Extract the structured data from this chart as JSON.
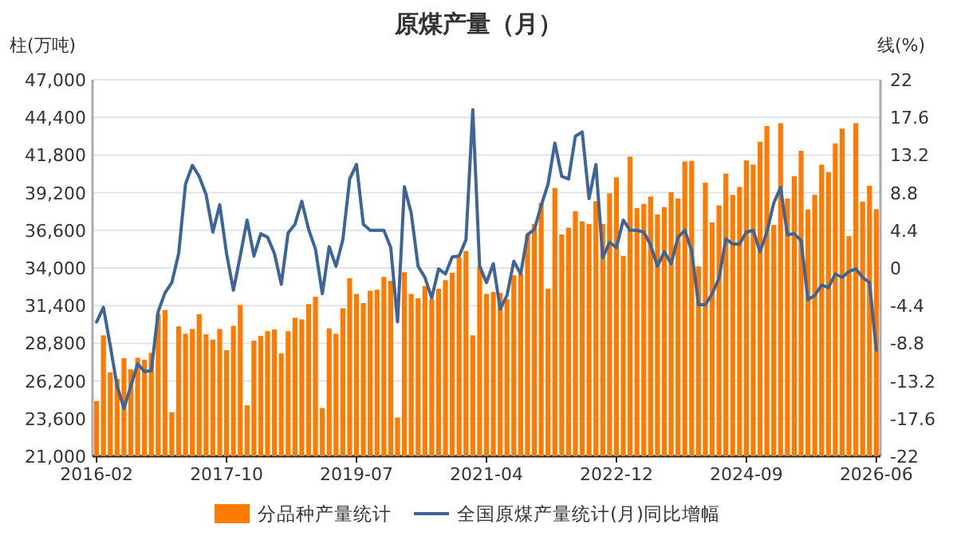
{
  "chart_data": {
    "type": "bar",
    "title": "原煤产量（月）",
    "ylabel": "柱(万吨)",
    "y2label": "线(%)",
    "categories": [
      "2016-02",
      null,
      null,
      null,
      null,
      null,
      null,
      null,
      null,
      null,
      null,
      null,
      null,
      null,
      null,
      null,
      null,
      null,
      null,
      "2017-10",
      null,
      null,
      null,
      null,
      null,
      null,
      null,
      null,
      null,
      null,
      null,
      null,
      null,
      null,
      null,
      null,
      null,
      null,
      "2019-07",
      null,
      null,
      null,
      null,
      null,
      null,
      null,
      null,
      null,
      null,
      null,
      null,
      null,
      null,
      null,
      null,
      null,
      null,
      "2021-04",
      null,
      null,
      null,
      null,
      null,
      null,
      null,
      null,
      null,
      null,
      null,
      null,
      null,
      null,
      null,
      null,
      null,
      null,
      "2022-12",
      null,
      null,
      null,
      null,
      null,
      null,
      null,
      null,
      null,
      null,
      null,
      null,
      null,
      null,
      null,
      null,
      null,
      null,
      "2024-09",
      null,
      null,
      null,
      null,
      null,
      null,
      null,
      null,
      null,
      null,
      null,
      null,
      null,
      null,
      null,
      null,
      null,
      null,
      "2026-06"
    ],
    "series": [
      {
        "name": "分品种产量统计",
        "color": "#ff7a00",
        "values": [
          24800,
          29350,
          26790,
          26350,
          27770,
          27000,
          27800,
          27660,
          28140,
          30810,
          31100,
          24040,
          29970,
          29460,
          29790,
          30810,
          29420,
          29060,
          29790,
          28320,
          30010,
          31440,
          24520,
          28980,
          29310,
          29640,
          29750,
          28100,
          29640,
          30560,
          30450,
          31510,
          32020,
          24330,
          29830,
          29460,
          31220,
          33300,
          32210,
          31580,
          32430,
          32500,
          33380,
          33120,
          23670,
          33710,
          32210,
          31910,
          32760,
          31840,
          32570,
          33160,
          33670,
          34730,
          35170,
          29350,
          34110,
          32210,
          32350,
          32280,
          31840,
          33490,
          33560,
          36310,
          37040,
          38500,
          32570,
          39530,
          36310,
          36780,
          37920,
          37220,
          37040,
          38610,
          37040,
          39160,
          40260,
          34840,
          41690,
          38140,
          38430,
          38940,
          37700,
          38210,
          39240,
          38800,
          41360,
          41400,
          34110,
          39900,
          37150,
          38320,
          40520,
          39050,
          39600,
          41430,
          41140,
          42720,
          43810,
          36970,
          44000,
          38800,
          40340,
          42090,
          38030,
          39050,
          41140,
          40630,
          42610,
          43630,
          36200,
          44000,
          38580,
          39680,
          38060
        ]
      },
      {
        "name": "全国原煤产量统计(月)同比增幅",
        "color": "#3d6596",
        "type": "line",
        "axis": "y2",
        "values": [
          -6.3,
          -4.6,
          -9.1,
          -13.8,
          -16.4,
          -13.8,
          -11.2,
          -12.1,
          -12.0,
          -5.1,
          -2.9,
          -1.7,
          1.7,
          9.8,
          12.0,
          10.7,
          8.6,
          4.2,
          7.4,
          1.7,
          -2.6,
          1.4,
          5.6,
          1.4,
          4.0,
          3.6,
          1.7,
          -1.9,
          4.1,
          5.1,
          7.8,
          4.5,
          2.2,
          -3.0,
          2.5,
          0.2,
          3.3,
          10.4,
          12.1,
          5.1,
          4.4,
          4.4,
          4.4,
          2.4,
          -6.3,
          9.5,
          6.4,
          0.2,
          -1.1,
          -3.5,
          -0.1,
          -0.7,
          1.3,
          1.4,
          3.3,
          18.5,
          0.2,
          -1.7,
          0.5,
          -4.8,
          -3.2,
          0.8,
          -0.7,
          3.9,
          4.5,
          7.3,
          9.8,
          14.6,
          10.7,
          10.4,
          15.4,
          15.9,
          8.1,
          12.1,
          1.2,
          3.0,
          2.4,
          5.6,
          4.4,
          4.4,
          4.2,
          2.7,
          0.2,
          1.9,
          0.5,
          3.6,
          4.4,
          2.0,
          -4.3,
          -4.3,
          -3.0,
          -1.2,
          3.4,
          2.8,
          2.8,
          4.2,
          4.4,
          1.9,
          4.2,
          7.6,
          9.4,
          3.9,
          4.0,
          3.2,
          -3.7,
          -3.2,
          -2.0,
          -2.3,
          -0.7,
          -1.1,
          -0.4,
          -0.1,
          -1.1,
          -1.7,
          -9.6
        ]
      }
    ],
    "ylim": [
      21000,
      47000
    ],
    "yticks": [
      {
        "value": 21000,
        "label": "21,000"
      },
      {
        "value": 23600,
        "label": "23,600"
      },
      {
        "value": 26200,
        "label": "26,200"
      },
      {
        "value": 28800,
        "label": "28,800"
      },
      {
        "value": 31400,
        "label": "31,400"
      },
      {
        "value": 34000,
        "label": "34,000"
      },
      {
        "value": 36600,
        "label": "36,600"
      },
      {
        "value": 39200,
        "label": "39,200"
      },
      {
        "value": 41800,
        "label": "41,800"
      },
      {
        "value": 44400,
        "label": "44,400"
      },
      {
        "value": 47000,
        "label": "47,000"
      }
    ],
    "y2lim": [
      -22,
      22
    ],
    "y2ticks": [
      -22,
      -17.6,
      -13.2,
      -8.8,
      -4.4,
      0,
      4.4,
      8.8,
      13.2,
      17.6,
      22
    ],
    "grid": "y",
    "legend": "bottom"
  }
}
